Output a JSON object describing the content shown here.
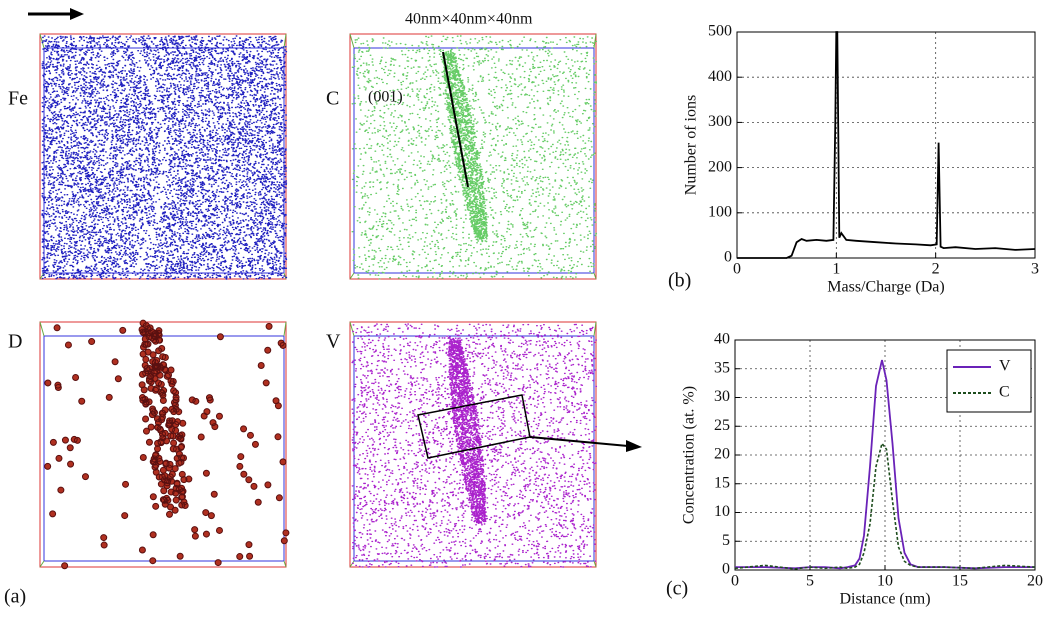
{
  "panels": {
    "fe_label": "Fe",
    "c_label": "C",
    "d_label": "D",
    "v_label": "V",
    "panel_a": "(a)",
    "panel_b": "(b)",
    "panel_c": "(c)",
    "box_size": "40nm×40nm×40nm",
    "plane": "(001)"
  },
  "chart_data": [
    {
      "type": "line",
      "xlabel": "Mass/Charge (Da)",
      "ylabel": "Number of ions",
      "x": [
        0,
        0.5,
        0.55,
        0.6,
        0.65,
        0.7,
        0.8,
        0.9,
        0.97,
        0.99,
        1.0,
        1.01,
        1.03,
        1.05,
        1.1,
        1.2,
        1.4,
        1.6,
        1.8,
        1.95,
        2.01,
        2.03,
        2.05,
        2.08,
        2.2,
        2.4,
        2.6,
        2.8,
        3.0
      ],
      "series": [
        {
          "color": "#000000",
          "values": [
            0,
            0,
            5,
            35,
            42,
            38,
            40,
            38,
            40,
            300,
            500,
            500,
            45,
            55,
            40,
            38,
            35,
            32,
            30,
            28,
            30,
            255,
            25,
            22,
            24,
            20,
            22,
            18,
            20
          ]
        }
      ],
      "xlim": [
        0,
        3
      ],
      "xticks": [
        0,
        1,
        2,
        3
      ],
      "ylim": [
        0,
        500
      ],
      "yticks": [
        0,
        100,
        200,
        300,
        400,
        500
      ],
      "grid": true
    },
    {
      "type": "line",
      "xlabel": "Distance (nm)",
      "ylabel": "Concentration (at. %)",
      "x": [
        0,
        2,
        4,
        5,
        6,
        7,
        7.5,
        8,
        8.3,
        8.6,
        9,
        9.4,
        9.8,
        10.1,
        10.5,
        10.9,
        11.3,
        11.7,
        12.2,
        14,
        16,
        18,
        20
      ],
      "series": [
        {
          "name": "V",
          "color": "#6a22b8",
          "dash": false,
          "values": [
            0.5,
            0.5,
            0.3,
            0.5,
            0.5,
            0.3,
            0.5,
            0.8,
            2,
            6,
            18,
            32,
            36.5,
            33,
            22,
            9,
            3,
            1,
            0.5,
            0.5,
            0.3,
            0.5,
            0.5
          ]
        },
        {
          "name": "C",
          "color": "#1d4d1d",
          "dash": true,
          "values": [
            0.3,
            0.8,
            0.2,
            0.5,
            0.3,
            0.5,
            0.3,
            0.5,
            1,
            3,
            8,
            18,
            22,
            21,
            12,
            4,
            1.5,
            0.8,
            0.5,
            0.5,
            0.3,
            0.8,
            0.5
          ]
        }
      ],
      "xlim": [
        0,
        20
      ],
      "xticks": [
        0,
        5,
        10,
        15,
        20
      ],
      "ylim": [
        0,
        40
      ],
      "yticks": [
        0,
        5,
        10,
        15,
        20,
        25,
        30,
        35,
        40
      ],
      "grid": true,
      "legend": "upper right"
    }
  ]
}
